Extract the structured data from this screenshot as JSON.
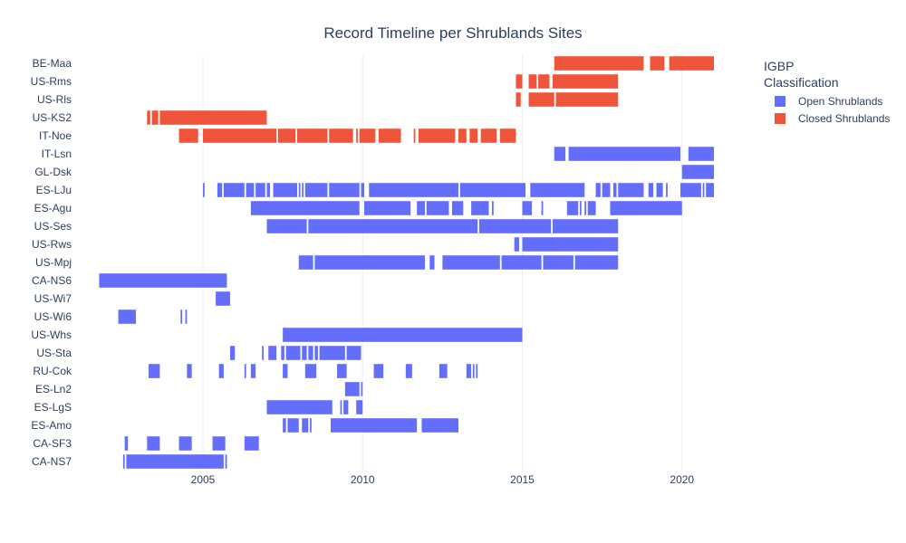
{
  "chart_data": {
    "type": "timeline",
    "title": "Record Timeline per Shrublands Sites",
    "x_range": [
      2001.0,
      2021.0
    ],
    "x_ticks": [
      2005,
      2010,
      2015,
      2020
    ],
    "grid": true,
    "legend": {
      "title_line1": "IGBP",
      "title_line2": "Classification",
      "placement": "top-right",
      "entries": [
        {
          "key": "open",
          "label": "Open Shrublands",
          "color": "#636efa"
        },
        {
          "key": "closed",
          "label": "Closed Shrublands",
          "color": "#ef553b"
        }
      ]
    },
    "sites": [
      {
        "name": "BE-Maa",
        "class": "closed",
        "segments": [
          [
            2016.0,
            2018.8
          ],
          [
            2019.0,
            2019.45
          ],
          [
            2019.6,
            2021.0
          ]
        ]
      },
      {
        "name": "US-Rms",
        "class": "closed",
        "segments": [
          [
            2014.8,
            2015.0
          ],
          [
            2015.2,
            2015.45
          ],
          [
            2015.5,
            2015.85
          ],
          [
            2015.95,
            2018.0
          ]
        ]
      },
      {
        "name": "US-Rls",
        "class": "closed",
        "segments": [
          [
            2014.8,
            2014.95
          ],
          [
            2015.2,
            2016.0
          ],
          [
            2016.05,
            2018.0
          ]
        ]
      },
      {
        "name": "US-KS2",
        "class": "closed",
        "segments": [
          [
            2003.25,
            2003.35
          ],
          [
            2003.4,
            2003.6
          ],
          [
            2003.65,
            2007.0
          ]
        ]
      },
      {
        "name": "IT-Noe",
        "class": "closed",
        "segments": [
          [
            2004.25,
            2004.85
          ],
          [
            2005.0,
            2007.3
          ],
          [
            2007.35,
            2007.9
          ],
          [
            2007.95,
            2008.9
          ],
          [
            2008.95,
            2009.7
          ],
          [
            2009.8,
            2009.85
          ],
          [
            2009.9,
            2010.4
          ],
          [
            2010.5,
            2011.2
          ],
          [
            2011.6,
            2011.65
          ],
          [
            2011.75,
            2012.9
          ],
          [
            2013.0,
            2013.25
          ],
          [
            2013.35,
            2013.6
          ],
          [
            2013.7,
            2014.2
          ],
          [
            2014.3,
            2014.8
          ]
        ]
      },
      {
        "name": "IT-Lsn",
        "class": "open",
        "segments": [
          [
            2016.0,
            2016.35
          ],
          [
            2016.45,
            2019.95
          ],
          [
            2020.2,
            2021.0
          ]
        ]
      },
      {
        "name": "GL-Dsk",
        "class": "open",
        "segments": [
          [
            2020.0,
            2021.0
          ]
        ]
      },
      {
        "name": "ES-LJu",
        "class": "open",
        "segments": [
          [
            2005.0,
            2005.05
          ],
          [
            2005.45,
            2005.6
          ],
          [
            2005.65,
            2006.3
          ],
          [
            2006.35,
            2006.6
          ],
          [
            2006.65,
            2006.95
          ],
          [
            2007.0,
            2007.1
          ],
          [
            2007.2,
            2007.95
          ],
          [
            2008.0,
            2008.05
          ],
          [
            2008.1,
            2008.15
          ],
          [
            2008.2,
            2008.9
          ],
          [
            2008.95,
            2009.9
          ],
          [
            2009.95,
            2010.05
          ],
          [
            2010.2,
            2013.0
          ],
          [
            2013.05,
            2015.1
          ],
          [
            2015.25,
            2016.95
          ],
          [
            2017.3,
            2017.45
          ],
          [
            2017.5,
            2017.75
          ],
          [
            2017.85,
            2017.95
          ],
          [
            2018.0,
            2018.8
          ],
          [
            2018.95,
            2019.1
          ],
          [
            2019.2,
            2019.4
          ],
          [
            2019.5,
            2019.55
          ],
          [
            2019.95,
            2020.6
          ],
          [
            2020.65,
            2020.7
          ],
          [
            2020.75,
            2021.0
          ]
        ]
      },
      {
        "name": "ES-Agu",
        "class": "open",
        "segments": [
          [
            2006.5,
            2009.9
          ],
          [
            2010.05,
            2011.5
          ],
          [
            2011.7,
            2011.95
          ],
          [
            2012.0,
            2012.7
          ],
          [
            2012.8,
            2013.15
          ],
          [
            2013.4,
            2013.95
          ],
          [
            2014.05,
            2014.1
          ],
          [
            2015.0,
            2015.3
          ],
          [
            2015.6,
            2015.65
          ],
          [
            2016.4,
            2016.75
          ],
          [
            2016.8,
            2016.85
          ],
          [
            2016.95,
            2017.0
          ],
          [
            2017.05,
            2017.3
          ],
          [
            2017.75,
            2020.0
          ]
        ]
      },
      {
        "name": "US-Ses",
        "class": "open",
        "segments": [
          [
            2007.0,
            2008.25
          ],
          [
            2008.3,
            2013.6
          ],
          [
            2013.65,
            2015.9
          ],
          [
            2015.95,
            2018.0
          ]
        ]
      },
      {
        "name": "US-Rws",
        "class": "open",
        "segments": [
          [
            2014.75,
            2014.9
          ],
          [
            2015.0,
            2018.0
          ]
        ]
      },
      {
        "name": "US-Mpj",
        "class": "open",
        "segments": [
          [
            2008.0,
            2008.45
          ],
          [
            2008.5,
            2011.95
          ],
          [
            2012.1,
            2012.25
          ],
          [
            2012.5,
            2014.3
          ],
          [
            2014.35,
            2015.6
          ],
          [
            2015.65,
            2016.6
          ],
          [
            2016.65,
            2018.0
          ]
        ]
      },
      {
        "name": "CA-NS6",
        "class": "open",
        "segments": [
          [
            2001.75,
            2005.75
          ]
        ]
      },
      {
        "name": "US-Wi7",
        "class": "open",
        "segments": [
          [
            2005.4,
            2005.85
          ]
        ]
      },
      {
        "name": "US-Wi6",
        "class": "open",
        "segments": [
          [
            2002.35,
            2002.9
          ],
          [
            2004.3,
            2004.35
          ],
          [
            2004.45,
            2004.5
          ]
        ]
      },
      {
        "name": "US-Whs",
        "class": "open",
        "segments": [
          [
            2007.5,
            2015.0
          ]
        ]
      },
      {
        "name": "US-Sta",
        "class": "open",
        "segments": [
          [
            2005.85,
            2006.0
          ],
          [
            2006.85,
            2006.9
          ],
          [
            2007.05,
            2007.3
          ],
          [
            2007.45,
            2007.55
          ],
          [
            2007.6,
            2008.05
          ],
          [
            2008.1,
            2008.25
          ],
          [
            2008.3,
            2008.45
          ],
          [
            2008.5,
            2008.6
          ],
          [
            2008.65,
            2009.45
          ],
          [
            2009.5,
            2009.95
          ]
        ]
      },
      {
        "name": "RU-Cok",
        "class": "open",
        "segments": [
          [
            2003.3,
            2003.65
          ],
          [
            2004.5,
            2004.65
          ],
          [
            2005.5,
            2005.65
          ],
          [
            2006.3,
            2006.35
          ],
          [
            2006.5,
            2006.65
          ],
          [
            2007.5,
            2007.65
          ],
          [
            2008.2,
            2008.55
          ],
          [
            2009.2,
            2009.5
          ],
          [
            2010.35,
            2010.65
          ],
          [
            2011.35,
            2011.55
          ],
          [
            2012.4,
            2012.65
          ],
          [
            2013.25,
            2013.4
          ],
          [
            2013.45,
            2013.5
          ],
          [
            2013.55,
            2013.6
          ]
        ]
      },
      {
        "name": "ES-Ln2",
        "class": "open",
        "segments": [
          [
            2009.45,
            2009.9
          ],
          [
            2009.95,
            2010.0
          ]
        ]
      },
      {
        "name": "ES-LgS",
        "class": "open",
        "segments": [
          [
            2007.0,
            2009.05
          ],
          [
            2009.3,
            2009.35
          ],
          [
            2009.4,
            2009.55
          ],
          [
            2009.8,
            2010.0
          ]
        ]
      },
      {
        "name": "ES-Amo",
        "class": "open",
        "segments": [
          [
            2007.5,
            2007.6
          ],
          [
            2007.65,
            2008.0
          ],
          [
            2008.1,
            2008.3
          ],
          [
            2008.35,
            2008.4
          ],
          [
            2009.0,
            2011.7
          ],
          [
            2011.85,
            2013.0
          ]
        ]
      },
      {
        "name": "CA-SF3",
        "class": "open",
        "segments": [
          [
            2002.55,
            2002.65
          ],
          [
            2003.25,
            2003.65
          ],
          [
            2004.25,
            2004.65
          ],
          [
            2005.3,
            2005.7
          ],
          [
            2006.3,
            2006.75
          ]
        ]
      },
      {
        "name": "CA-NS7",
        "class": "open",
        "segments": [
          [
            2002.5,
            2002.55
          ],
          [
            2002.6,
            2005.65
          ],
          [
            2005.7,
            2005.75
          ]
        ]
      }
    ]
  }
}
